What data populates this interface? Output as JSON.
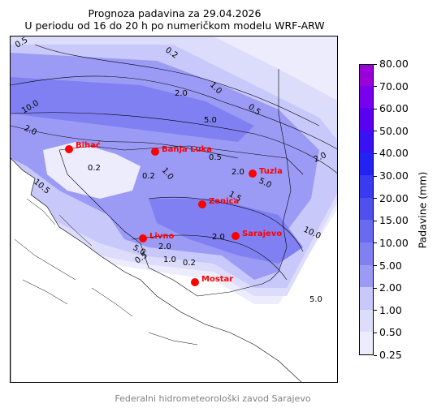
{
  "title": {
    "line1": "Prognoza padavina za 29.04.2026",
    "line2": "U periodu od 16 do 20 h po numeričkom modelu WRF-ARW"
  },
  "footer": "Federalni hidrometeorološki zavod Sarajevo",
  "colorbar": {
    "label": "Padavine (mm)",
    "levels": [
      {
        "value": "0.25",
        "color": "#ececfd"
      },
      {
        "value": "0.50",
        "color": "#dcdcfb"
      },
      {
        "value": "1.00",
        "color": "#c8c8fa"
      },
      {
        "value": "2.00",
        "color": "#9b9bf6"
      },
      {
        "value": "5.00",
        "color": "#8080f2"
      },
      {
        "value": "10.00",
        "color": "#6a6af0"
      },
      {
        "value": "15.00",
        "color": "#5050ef"
      },
      {
        "value": "20.00",
        "color": "#3a3af0"
      },
      {
        "value": "30.00",
        "color": "#2222f2"
      },
      {
        "value": "40.00",
        "color": "#3a10f4"
      },
      {
        "value": "50.00",
        "color": "#5a00f0"
      },
      {
        "value": "60.00",
        "color": "#7800ee"
      },
      {
        "value": "70.00",
        "color": "#9a00d8"
      },
      {
        "value": "80.00",
        "color": "#b000a8"
      }
    ]
  },
  "cities": [
    {
      "name": "Bihać"
    },
    {
      "name": "Banja Luka"
    },
    {
      "name": "Tuzla"
    },
    {
      "name": "Zenica"
    },
    {
      "name": "Livno"
    },
    {
      "name": "Sarajevo"
    },
    {
      "name": "Mostar"
    }
  ],
  "contour_labels": [
    "0.5",
    "0.2",
    "1.0",
    "0.5",
    "10.0",
    "2.0",
    "5.0",
    "2.0",
    "2.0",
    "10.5",
    "0.2",
    "0.2",
    "1.0",
    "0.5",
    "2.0",
    "1.5",
    "5.0",
    "10.0",
    "2.0",
    "5.0",
    "0.5",
    "1.0",
    "0.2",
    "2.0",
    "5.0"
  ]
}
